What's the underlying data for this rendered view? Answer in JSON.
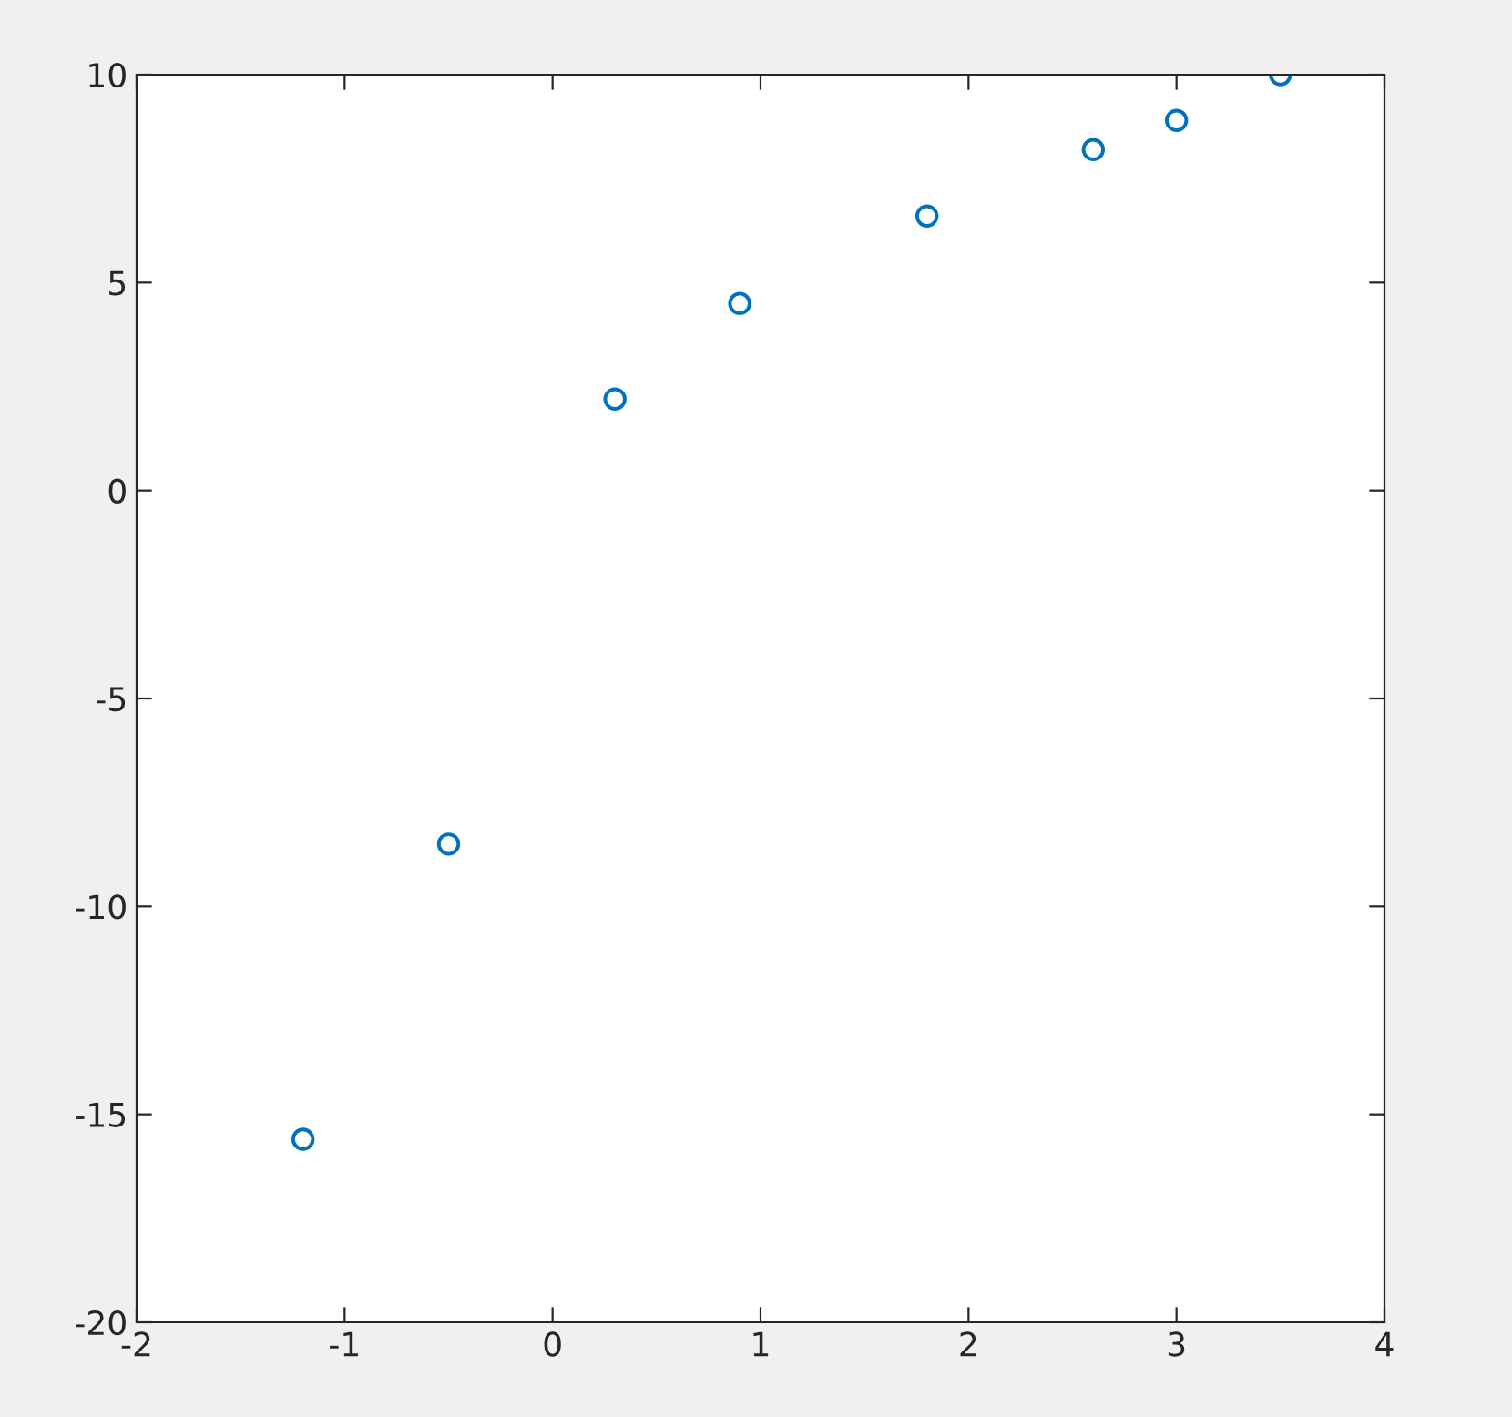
{
  "chart_data": {
    "type": "scatter",
    "x": [
      -1.2,
      -0.5,
      0.3,
      0.9,
      1.8,
      2.6,
      3.0,
      3.5
    ],
    "series": [
      {
        "color": "#0072bd",
        "values": [
          -15.6,
          -8.5,
          2.2,
          4.5,
          6.6,
          8.2,
          8.9,
          10
        ]
      }
    ],
    "xlim": [
      -2,
      4
    ],
    "xticks": [
      -2,
      -1,
      0,
      1,
      2,
      3,
      4
    ],
    "ylim": [
      -20,
      10
    ],
    "yticks": [
      -20,
      -15,
      -10,
      -5,
      0,
      5,
      10
    ],
    "marker": "circle",
    "grid": false,
    "legend": false
  }
}
